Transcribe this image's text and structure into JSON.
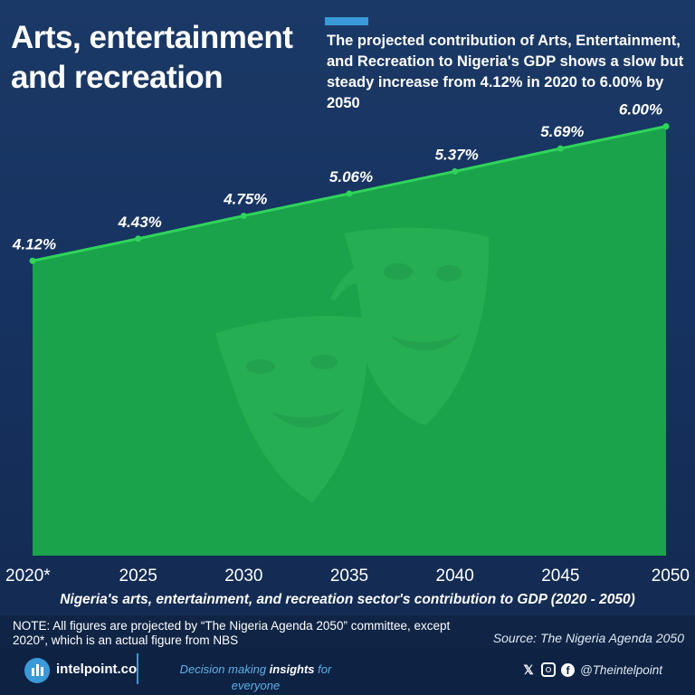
{
  "header": {
    "title": "Arts, entertainment and recreation",
    "subtitle": "The projected contribution of Arts, Entertainment, and Recreation to Nigeria's GDP shows a slow but steady increase from 4.12% in 2020 to 6.00% by 2050"
  },
  "colors": {
    "area_fill": "#1aa34a",
    "line": "#2fd45a",
    "accent": "#3a9ad9"
  },
  "chart_data": {
    "type": "area",
    "categories": [
      "2020*",
      "2025",
      "2030",
      "2035",
      "2040",
      "2045",
      "2050"
    ],
    "values": [
      4.12,
      4.43,
      4.75,
      5.06,
      5.37,
      5.69,
      6.0
    ],
    "data_labels": [
      "4.12%",
      "4.43%",
      "4.75%",
      "5.06%",
      "5.37%",
      "5.69%",
      "6.00%"
    ],
    "title": "Nigeria's arts, entertainment, and recreation sector's contribution to GDP (2020 - 2050)",
    "xlabel": "",
    "ylabel": "",
    "ylim": [
      0,
      6.4
    ]
  },
  "footer": {
    "note": "NOTE: All figures are projected by “The Nigeria Agenda 2050” committee, except 2020*, which is an actual figure from NBS",
    "source": "Source: The Nigeria Agenda 2050",
    "brand": "intelpoint.co",
    "tagline_pre": "Decision making ",
    "tagline_bold": "insights",
    "tagline_post": " for everyone",
    "handle": "@Theintelpoint",
    "x_icon": "x-icon",
    "instagram_icon": "instagram-icon",
    "facebook_icon": "facebook-icon"
  }
}
